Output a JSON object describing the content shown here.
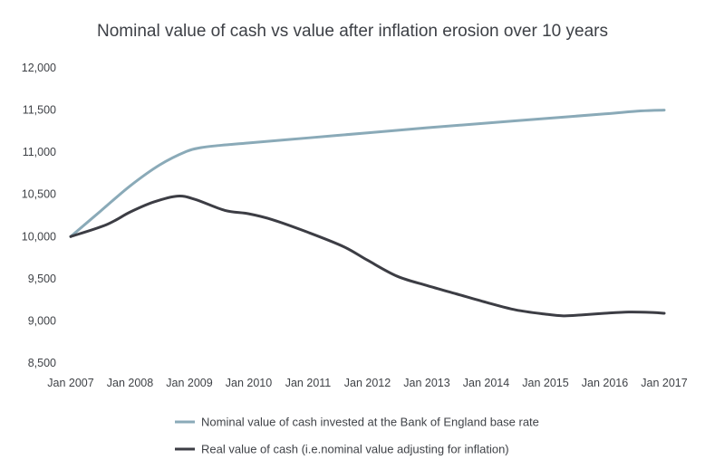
{
  "chart_data": {
    "type": "line",
    "title": "Nominal value of cash vs value after inflation erosion over 10 years",
    "xlabel": "",
    "ylabel": "",
    "categories": [
      "Jan 2007",
      "Jan 2008",
      "Jan 2009",
      "Jan 2010",
      "Jan 2011",
      "Jan 2012",
      "Jan 2013",
      "Jan 2014",
      "Jan 2015",
      "Jan 2016",
      "Jan 2017"
    ],
    "x_range": [
      0,
      10
    ],
    "ylim": [
      8500,
      12000
    ],
    "y_ticks": [
      8500,
      9000,
      9500,
      10000,
      10500,
      11000,
      11500,
      12000
    ],
    "y_tick_labels": [
      "8,500",
      "9,000",
      "9,500",
      "10,000",
      "10,500",
      "11,000",
      "11,500",
      "12,000"
    ],
    "grid": false,
    "legend_position": "bottom",
    "series": [
      {
        "name": "Nominal value of cash invested at the Bank of England base rate",
        "color": "#8aaab8",
        "x": [
          0,
          0.5,
          1.0,
          1.5,
          1.95,
          2.2,
          2.5,
          3,
          4,
          5,
          6,
          7,
          8,
          9,
          9.6,
          10
        ],
        "y": [
          10000,
          10300,
          10600,
          10850,
          11010,
          11055,
          11080,
          11110,
          11170,
          11230,
          11290,
          11345,
          11400,
          11455,
          11490,
          11500
        ]
      },
      {
        "name": "Real value of cash (i.e.nominal value adjusting for inflation)",
        "color": "#3c3d44",
        "x": [
          0,
          0.6,
          1.0,
          1.4,
          1.8,
          2.1,
          2.6,
          3.0,
          3.4,
          4.0,
          4.6,
          5.0,
          5.5,
          6.0,
          6.5,
          7.0,
          7.5,
          8.0,
          8.3,
          8.6,
          9.0,
          9.4,
          9.8,
          10.0
        ],
        "y": [
          10000,
          10140,
          10290,
          10410,
          10480,
          10440,
          10310,
          10270,
          10200,
          10050,
          9880,
          9720,
          9530,
          9420,
          9320,
          9220,
          9130,
          9080,
          9060,
          9070,
          9090,
          9105,
          9100,
          9090
        ]
      }
    ]
  }
}
